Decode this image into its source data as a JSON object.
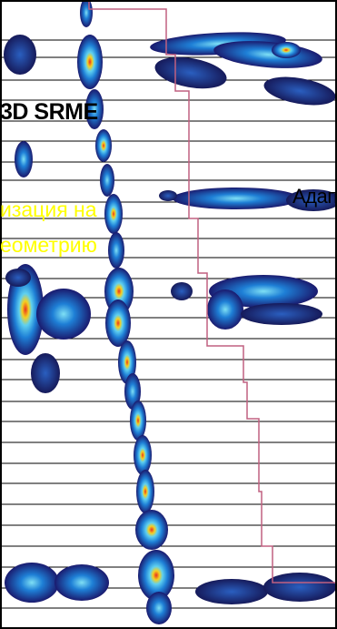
{
  "labels": {
    "srme": "3D SRME",
    "regularization_line1": "изация на",
    "regularization_line2": "еометрию",
    "adaptive": "Адап"
  },
  "colors": {
    "background": "#ffffff",
    "grid_line": "#000000",
    "boundary_line": "#c06080",
    "energy_low": "#1a1a6e",
    "energy_mid": "#1e7fd6",
    "energy_high": "#5fd0f0",
    "energy_peak": "#e83020",
    "regularization_text": "#ffff00",
    "title_text": "#000000"
  }
}
